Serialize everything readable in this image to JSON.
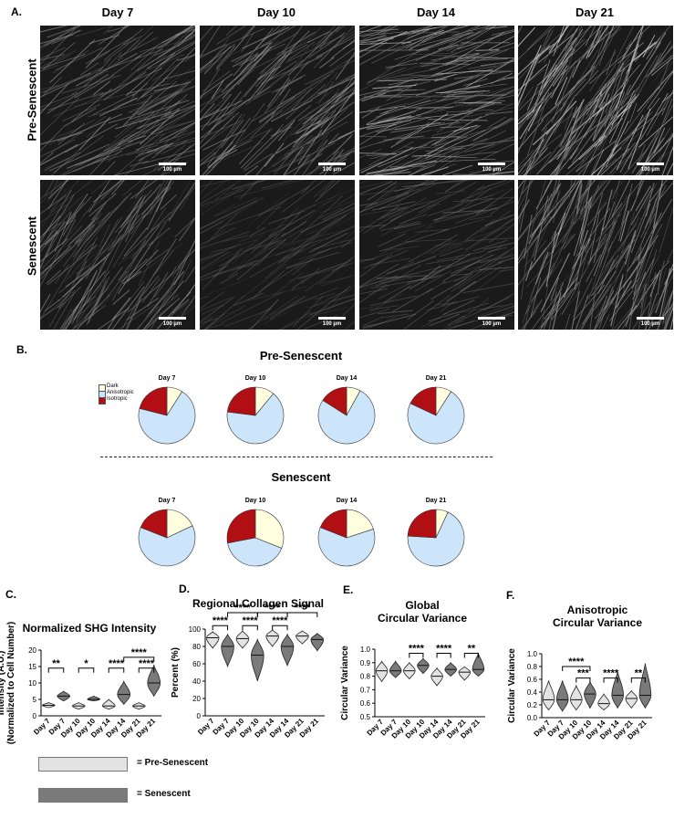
{
  "panel_a": {
    "letter": "A.",
    "columns": [
      "Day 7",
      "Day 10",
      "Day 14",
      "Day 21"
    ],
    "rows": [
      "Pre-Senescent",
      "Senescent"
    ],
    "scale_label": "100 µm",
    "brightness": [
      [
        0.55,
        0.6,
        0.75,
        0.85
      ],
      [
        0.55,
        0.25,
        0.35,
        0.7
      ]
    ]
  },
  "panel_b": {
    "letter": "B.",
    "title_pre": "Pre-Senescent",
    "title_sen": "Senescent",
    "legend": [
      "Dark",
      "Anisotropic",
      "Isotropic"
    ],
    "colors": {
      "dark": "#ffffe0",
      "anisotropic": "#cce5fb",
      "isotropic": "#b10f14"
    },
    "days": [
      "Day 7",
      "Day 10",
      "Day 14",
      "Day 21"
    ]
  },
  "panel_c": {
    "letter": "C."
  },
  "panel_d": {
    "letter": "D."
  },
  "panel_e": {
    "letter": "E."
  },
  "panel_f": {
    "letter": "F."
  },
  "key": {
    "pre_label": "= Pre-Senescent",
    "sen_label": "= Senescent",
    "pre_color": "#e3e3e3",
    "sen_color": "#7a7a7a"
  },
  "chart_data": [
    {
      "id": "pie-pre",
      "type": "pie",
      "title": "Pre-Senescent",
      "categories": [
        "Dark",
        "Anisotropic",
        "Isotropic"
      ],
      "series": [
        {
          "name": "Day 7",
          "values": [
            9,
            70,
            21
          ]
        },
        {
          "name": "Day 10",
          "values": [
            11,
            66,
            23
          ]
        },
        {
          "name": "Day 14",
          "values": [
            8,
            76,
            16
          ]
        },
        {
          "name": "Day 21",
          "values": [
            9,
            73,
            18
          ]
        }
      ]
    },
    {
      "id": "pie-sen",
      "type": "pie",
      "title": "Senescent",
      "categories": [
        "Dark",
        "Anisotropic",
        "Isotropic"
      ],
      "series": [
        {
          "name": "Day 7",
          "values": [
            18,
            63,
            19
          ]
        },
        {
          "name": "Day 10",
          "values": [
            31,
            41,
            28
          ]
        },
        {
          "name": "Day 14",
          "values": [
            20,
            61,
            19
          ]
        },
        {
          "name": "Day 21",
          "values": [
            7,
            69,
            24
          ]
        }
      ]
    },
    {
      "id": "c",
      "type": "violin",
      "title": "Normalized SHG Intensity",
      "ylabel": "Intensity (A.U.)\n(Normalized to Cell Number)",
      "ylim": [
        0,
        20
      ],
      "yticks": [
        0,
        5,
        10,
        15,
        20
      ],
      "categories": [
        "Day 7",
        "Day 7",
        "Day 10",
        "Day 10",
        "Day 14",
        "Day 14",
        "Day 21",
        "Day 21"
      ],
      "groups": [
        "pre",
        "sen",
        "pre",
        "sen",
        "pre",
        "sen",
        "pre",
        "sen"
      ],
      "ranges": [
        [
          2.5,
          4
        ],
        [
          4.5,
          7.5
        ],
        [
          2,
          4
        ],
        [
          4.5,
          6
        ],
        [
          2,
          5
        ],
        [
          3.5,
          10.5
        ],
        [
          2,
          4
        ],
        [
          6,
          15.5
        ]
      ],
      "medians": [
        3.2,
        6,
        3,
        5,
        3,
        6.5,
        3,
        10
      ],
      "sig": [
        {
          "from": 0,
          "to": 1,
          "label": "**",
          "y": 14.5
        },
        {
          "from": 2,
          "to": 3,
          "label": "*",
          "y": 14.5
        },
        {
          "from": 4,
          "to": 5,
          "label": "****",
          "y": 14.5
        },
        {
          "from": 6,
          "to": 7,
          "label": "****",
          "y": 14.5
        },
        {
          "from": 5,
          "to": 7,
          "label": "****",
          "y": 17.8
        }
      ]
    },
    {
      "id": "d",
      "type": "violin",
      "title": "Regional Collagen Signal",
      "ylabel": "Percent (%)",
      "ylim": [
        0,
        100
      ],
      "yticks": [
        0,
        20,
        40,
        60,
        80,
        100
      ],
      "categories": [
        "Day 7",
        "Day 7",
        "Day 10",
        "Day 10",
        "Day 14",
        "Day 14",
        "Day 21",
        "Day 21"
      ],
      "groups": [
        "pre",
        "sen",
        "pre",
        "sen",
        "pre",
        "sen",
        "pre",
        "sen"
      ],
      "ranges": [
        [
          78,
          97
        ],
        [
          57,
          94
        ],
        [
          78,
          98
        ],
        [
          40,
          88
        ],
        [
          80,
          99
        ],
        [
          58,
          94
        ],
        [
          83,
          98
        ],
        [
          75,
          95
        ]
      ],
      "medians": [
        90,
        80,
        89,
        70,
        92,
        80,
        92,
        88
      ],
      "sig": [
        {
          "from": 0,
          "to": 1,
          "label": "****",
          "y": 104
        },
        {
          "from": 2,
          "to": 3,
          "label": "****",
          "y": 104
        },
        {
          "from": 4,
          "to": 5,
          "label": "****",
          "y": 104
        },
        {
          "from": 1,
          "to": 3,
          "label": "****",
          "y": 119
        },
        {
          "from": 3,
          "to": 5,
          "label": "****",
          "y": 119
        },
        {
          "from": 5,
          "to": 7,
          "label": "****",
          "y": 119
        }
      ]
    },
    {
      "id": "e",
      "type": "violin",
      "title": "Global\nCircular Variance",
      "ylabel": "Circular Variance",
      "ylim": [
        0.5,
        1.0
      ],
      "yticks": [
        0.5,
        0.6,
        0.7,
        0.8,
        0.9,
        1.0
      ],
      "categories": [
        "Day 7",
        "Day 7",
        "Day 10",
        "Day 10",
        "Day 14",
        "Day 14",
        "Day 21",
        "Day 21"
      ],
      "groups": [
        "pre",
        "sen",
        "pre",
        "sen",
        "pre",
        "sen",
        "pre",
        "sen"
      ],
      "ranges": [
        [
          0.76,
          0.91
        ],
        [
          0.79,
          0.91
        ],
        [
          0.78,
          0.9
        ],
        [
          0.82,
          0.93
        ],
        [
          0.73,
          0.86
        ],
        [
          0.8,
          0.9
        ],
        [
          0.77,
          0.87
        ],
        [
          0.8,
          0.97
        ]
      ],
      "medians": [
        0.84,
        0.84,
        0.84,
        0.88,
        0.8,
        0.85,
        0.83,
        0.85
      ],
      "sig": [
        {
          "from": 2,
          "to": 3,
          "label": "****",
          "y": 0.97
        },
        {
          "from": 4,
          "to": 5,
          "label": "****",
          "y": 0.97
        },
        {
          "from": 6,
          "to": 7,
          "label": "**",
          "y": 0.97
        }
      ]
    },
    {
      "id": "f",
      "type": "violin",
      "title": "Anisotropic\nCircular Variance",
      "ylabel": "Circular Variance",
      "ylim": [
        0,
        1.0
      ],
      "yticks": [
        0,
        0.2,
        0.4,
        0.6,
        0.8,
        1.0
      ],
      "categories": [
        "Day 7",
        "Day 7",
        "Day 10",
        "Day 10",
        "Day 14",
        "Day 14",
        "Day 21",
        "Day 21"
      ],
      "groups": [
        "pre",
        "sen",
        "pre",
        "sen",
        "pre",
        "sen",
        "pre",
        "sen"
      ],
      "ranges": [
        [
          0.12,
          0.58
        ],
        [
          0.1,
          0.58
        ],
        [
          0.12,
          0.5
        ],
        [
          0.15,
          0.56
        ],
        [
          0.12,
          0.37
        ],
        [
          0.15,
          0.72
        ],
        [
          0.15,
          0.42
        ],
        [
          0.15,
          0.85
        ]
      ],
      "medians": [
        0.28,
        0.28,
        0.28,
        0.37,
        0.22,
        0.35,
        0.3,
        0.35
      ],
      "sig": [
        {
          "from": 2,
          "to": 3,
          "label": "***",
          "y": 0.62
        },
        {
          "from": 4,
          "to": 5,
          "label": "****",
          "y": 0.62
        },
        {
          "from": 6,
          "to": 7,
          "label": "**",
          "y": 0.62
        },
        {
          "from": 1,
          "to": 3,
          "label": "****",
          "y": 0.8
        }
      ]
    }
  ]
}
